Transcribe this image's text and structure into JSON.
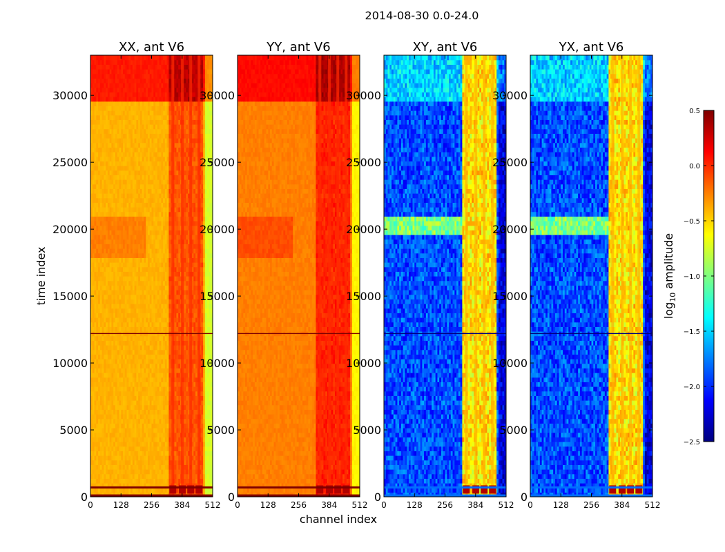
{
  "chart_data": {
    "type": "heatmap",
    "suptitle": "2014-08-30 0.0-24.0",
    "xlabel": "channel index",
    "ylabel": "time index",
    "colorbar": {
      "label_base": "log",
      "label_sub": "10",
      "label_rest": " amplitude",
      "range": [
        -2.5,
        0.5
      ],
      "ticks": [
        0.5,
        0.0,
        -0.5,
        -1.0,
        -1.5,
        -2.0,
        -2.5
      ],
      "tick_labels": [
        "0.5",
        "0.0",
        "−0.5",
        "−1.0",
        "−1.5",
        "−2.0",
        "−2.5"
      ],
      "colormap": "jet",
      "colormap_stops": [
        "#00007f",
        "#0000ff",
        "#007fff",
        "#00ffff",
        "#7fff7f",
        "#ffff00",
        "#ff7f00",
        "#ff0000",
        "#7f0000"
      ]
    },
    "x_range": [
      0,
      512
    ],
    "y_range": [
      0,
      33000
    ],
    "x_ticks": [
      0,
      128,
      256,
      384,
      512
    ],
    "x_tick_labels": [
      "0",
      "128",
      "256",
      "384",
      "512"
    ],
    "y_ticks": [
      0,
      5000,
      10000,
      15000,
      20000,
      25000,
      30000
    ],
    "y_tick_labels": [
      "0",
      "5000",
      "10000",
      "15000",
      "20000",
      "25000",
      "30000"
    ],
    "panels": [
      {
        "title": "XX, ant V6",
        "kind": "auto",
        "base_level": -0.4,
        "top_level": 0.05,
        "rfi_level": 0.35,
        "low_level": -0.8
      },
      {
        "title": "YY, ant V6",
        "kind": "auto",
        "base_level": -0.25,
        "top_level": 0.1,
        "rfi_level": 0.35,
        "low_level": -0.6
      },
      {
        "title": "XY, ant V6",
        "kind": "cross",
        "base_level": -1.9,
        "top_level": -1.5,
        "rfi_level": 0.35,
        "low_level": -2.3
      },
      {
        "title": "YX, ant V6",
        "kind": "cross",
        "base_level": -1.9,
        "top_level": -1.5,
        "rfi_level": 0.35,
        "low_level": -2.3
      }
    ],
    "features": {
      "high_time_band_start": 29700,
      "rfi_channel_band": [
        330,
        470
      ],
      "rfi_channels": [
        345,
        385,
        420,
        455
      ],
      "strong_bottom_rows": [
        100,
        700
      ],
      "mid_band": [
        18000,
        21000
      ],
      "cross_bright_band": [
        19500,
        21000
      ],
      "dark_line_time": 12200
    }
  }
}
